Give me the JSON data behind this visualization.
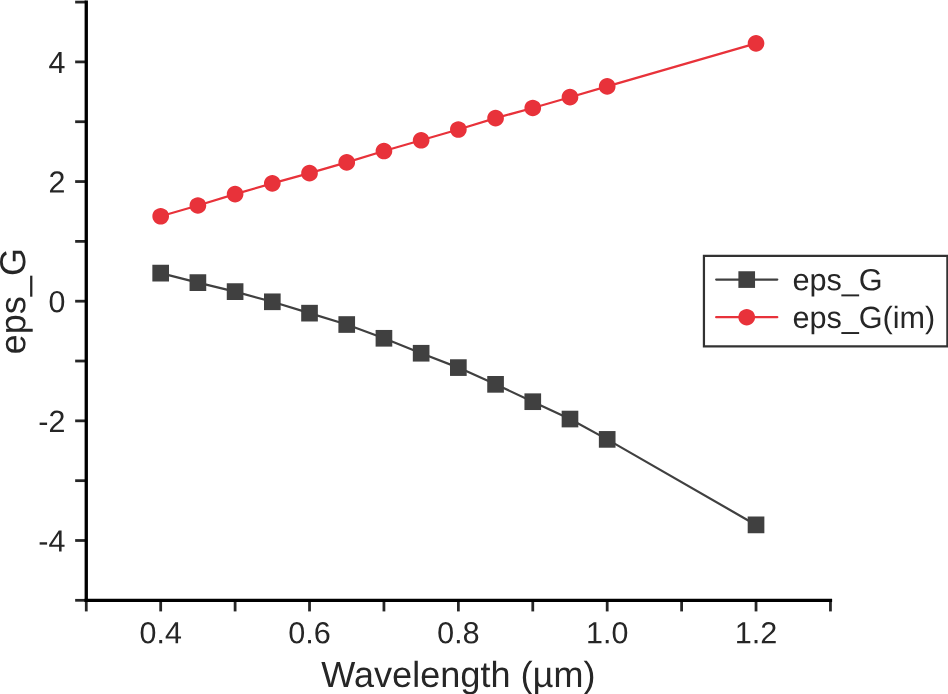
{
  "chart_data": {
    "type": "line",
    "xlabel": "Wavelength (µm)",
    "ylabel": "eps_G",
    "x": [
      0.4,
      0.45,
      0.5,
      0.55,
      0.6,
      0.65,
      0.7,
      0.75,
      0.8,
      0.85,
      0.9,
      0.95,
      1.0,
      1.2
    ],
    "series": [
      {
        "name": "eps_G",
        "color": "#404040",
        "marker": "square",
        "values": [
          0.47,
          0.31,
          0.16,
          -0.01,
          -0.2,
          -0.39,
          -0.62,
          -0.87,
          -1.11,
          -1.39,
          -1.68,
          -1.97,
          -2.31,
          -3.74
        ]
      },
      {
        "name": "eps_G(im)",
        "color": "#e8323a",
        "marker": "circle",
        "values": [
          1.42,
          1.6,
          1.79,
          1.97,
          2.14,
          2.32,
          2.51,
          2.69,
          2.87,
          3.06,
          3.23,
          3.41,
          3.59,
          4.31
        ]
      }
    ],
    "xlim": [
      0.3,
      1.3
    ],
    "xticks": [
      {
        "value": 0.3,
        "label": null
      },
      "0.4",
      {
        "value": 0.5,
        "label": null
      },
      0.6,
      {
        "value": 0.7,
        "label": null
      },
      0.8,
      {
        "value": 0.9,
        "label": null
      },
      {
        "value": 1.0,
        "label": "1.0"
      },
      {
        "value": 1.1,
        "label": null
      },
      1.2,
      {
        "value": 1.3,
        "label": null
      }
    ],
    "ylim": [
      -5,
      5
    ],
    "yticks": [
      {
        "value": -5,
        "label": null
      },
      -4,
      {
        "value": -3,
        "label": null
      },
      -2,
      {
        "value": -1,
        "label": null
      },
      0,
      {
        "value": 1,
        "label": null
      },
      2,
      {
        "value": 3,
        "label": null
      },
      4,
      {
        "value": 5,
        "label": null
      }
    ],
    "grid": false,
    "legend": "right",
    "line_style": "solid"
  }
}
